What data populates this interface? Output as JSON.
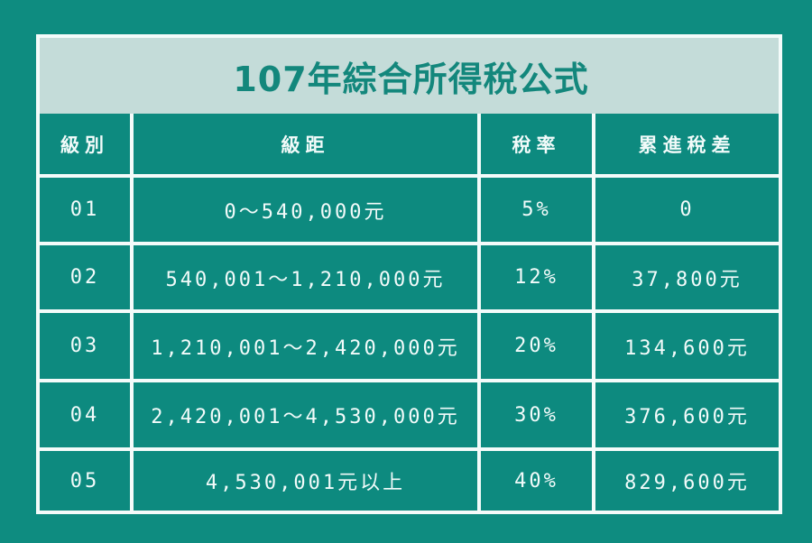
{
  "title": "107年綜合所得稅公式",
  "colors": {
    "background": "#0e8c80",
    "cell_fill": "#0d8a7f",
    "title_band": "#c4dcd9",
    "title_text": "#13877c",
    "grid_lines": "#f4fbfa",
    "cell_text": "#f2fbfa"
  },
  "table": {
    "headers": [
      "級別",
      "級距",
      "稅率",
      "累進稅差"
    ],
    "rows": [
      {
        "level": "01",
        "range": "0～540,000元",
        "rate": "5%",
        "progressive_diff": "0"
      },
      {
        "level": "02",
        "range": "540,001～1,210,000元",
        "rate": "12%",
        "progressive_diff": "37,800元"
      },
      {
        "level": "03",
        "range": "1,210,001～2,420,000元",
        "rate": "20%",
        "progressive_diff": "134,600元"
      },
      {
        "level": "04",
        "range": "2,420,001～4,530,000元",
        "rate": "30%",
        "progressive_diff": "376,600元"
      },
      {
        "level": "05",
        "range": "4,530,001元以上",
        "rate": "40%",
        "progressive_diff": "829,600元"
      }
    ]
  }
}
